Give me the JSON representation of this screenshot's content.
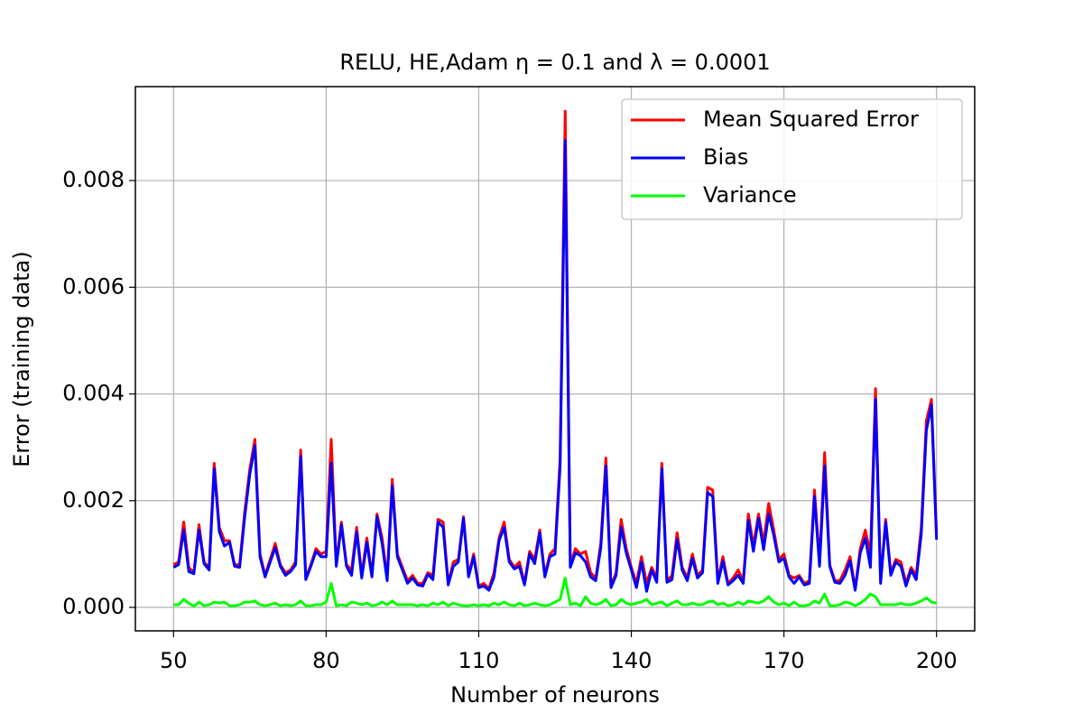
{
  "chart_data": {
    "type": "line",
    "title": "RELU, HE,Adam η = 0.1 and λ = 0.0001",
    "xlabel": "Number of neurons",
    "ylabel": "Error (training data)",
    "x": [
      50,
      51,
      52,
      53,
      54,
      55,
      56,
      57,
      58,
      59,
      60,
      61,
      62,
      63,
      64,
      65,
      66,
      67,
      68,
      69,
      70,
      71,
      72,
      73,
      74,
      75,
      76,
      77,
      78,
      79,
      80,
      81,
      82,
      83,
      84,
      85,
      86,
      87,
      88,
      89,
      90,
      91,
      92,
      93,
      94,
      95,
      96,
      97,
      98,
      99,
      100,
      101,
      102,
      103,
      104,
      105,
      106,
      107,
      108,
      109,
      110,
      111,
      112,
      113,
      114,
      115,
      116,
      117,
      118,
      119,
      120,
      121,
      122,
      123,
      124,
      125,
      126,
      127,
      128,
      129,
      130,
      131,
      132,
      133,
      134,
      135,
      136,
      137,
      138,
      139,
      140,
      141,
      142,
      143,
      144,
      145,
      146,
      147,
      148,
      149,
      150,
      151,
      152,
      153,
      154,
      155,
      156,
      157,
      158,
      159,
      160,
      161,
      162,
      163,
      164,
      165,
      166,
      167,
      168,
      169,
      170,
      171,
      172,
      173,
      174,
      175,
      176,
      177,
      178,
      179,
      180,
      181,
      182,
      183,
      184,
      185,
      186,
      187,
      188,
      189,
      190,
      191,
      192,
      193,
      194,
      195,
      196,
      197,
      198,
      199,
      200
    ],
    "series": [
      {
        "name": "Mean Squared Error",
        "color": "#ff0000",
        "values": [
          0.0008,
          0.00085,
          0.0016,
          0.00075,
          0.00065,
          0.00155,
          0.00085,
          0.00075,
          0.0027,
          0.0015,
          0.00125,
          0.00125,
          0.0008,
          0.0008,
          0.0018,
          0.0026,
          0.00315,
          0.001,
          0.0006,
          0.0009,
          0.0012,
          0.0008,
          0.00065,
          0.0007,
          0.00085,
          0.00295,
          0.00055,
          0.0008,
          0.0011,
          0.001,
          0.00105,
          0.00315,
          0.0008,
          0.0016,
          0.0008,
          0.0007,
          0.0015,
          0.0006,
          0.0013,
          0.0006,
          0.00175,
          0.0013,
          0.00055,
          0.0024,
          0.001,
          0.00075,
          0.0005,
          0.0006,
          0.00045,
          0.00045,
          0.00065,
          0.0006,
          0.00165,
          0.0016,
          0.00045,
          0.00085,
          0.0009,
          0.0017,
          0.0006,
          0.001,
          0.0004,
          0.00045,
          0.00035,
          0.00065,
          0.0013,
          0.0016,
          0.0009,
          0.00075,
          0.00085,
          0.00045,
          0.00105,
          0.0009,
          0.00145,
          0.0006,
          0.001,
          0.0011,
          0.0028,
          0.0093,
          0.0008,
          0.0011,
          0.001,
          0.00105,
          0.00065,
          0.00055,
          0.0012,
          0.0028,
          0.0004,
          0.00065,
          0.00165,
          0.0011,
          0.00075,
          0.00045,
          0.00095,
          0.00045,
          0.00075,
          0.00055,
          0.0027,
          0.0005,
          0.0006,
          0.0014,
          0.00075,
          0.00055,
          0.001,
          0.0006,
          0.0007,
          0.00225,
          0.0022,
          0.0005,
          0.00095,
          0.00045,
          0.00055,
          0.0007,
          0.0005,
          0.00175,
          0.00115,
          0.00175,
          0.0012,
          0.00195,
          0.00145,
          0.0009,
          0.001,
          0.0006,
          0.00055,
          0.0006,
          0.00045,
          0.0005,
          0.0022,
          0.00085,
          0.0029,
          0.0008,
          0.0005,
          0.0005,
          0.0007,
          0.00095,
          0.00035,
          0.0011,
          0.00145,
          0.001,
          0.0041,
          0.0005,
          0.00165,
          0.00065,
          0.0009,
          0.00085,
          0.00045,
          0.00075,
          0.0006,
          0.0015,
          0.0035,
          0.0039,
          0.00135
        ]
      },
      {
        "name": "Bias",
        "color": "#0000ff",
        "values": [
          0.00075,
          0.0008,
          0.00145,
          0.00067,
          0.00063,
          0.00145,
          0.00082,
          0.0007,
          0.0026,
          0.00142,
          0.00115,
          0.00122,
          0.00077,
          0.00075,
          0.0017,
          0.0025,
          0.00303,
          0.00095,
          0.00057,
          0.00085,
          0.00112,
          0.00077,
          0.0006,
          0.00067,
          0.0008,
          0.00283,
          0.00052,
          0.00077,
          0.00105,
          0.00095,
          0.00095,
          0.0027,
          0.00077,
          0.00155,
          0.00077,
          0.0006,
          0.00142,
          0.00055,
          0.00122,
          0.00057,
          0.0017,
          0.0012,
          0.0005,
          0.00228,
          0.00095,
          0.0007,
          0.00045,
          0.00055,
          0.00042,
          0.0004,
          0.00062,
          0.00052,
          0.0016,
          0.0015,
          0.00042,
          0.00077,
          0.00085,
          0.00167,
          0.00057,
          0.00095,
          0.00037,
          0.0004,
          0.00032,
          0.00057,
          0.00125,
          0.0015,
          0.00085,
          0.00072,
          0.00077,
          0.00042,
          0.001,
          0.00082,
          0.0014,
          0.00057,
          0.00095,
          0.001,
          0.00265,
          0.00875,
          0.00075,
          0.00102,
          0.00097,
          0.00085,
          0.00057,
          0.0005,
          0.00112,
          0.00265,
          0.00037,
          0.0006,
          0.0015,
          0.00102,
          0.0007,
          0.00037,
          0.00085,
          0.0003,
          0.0007,
          0.00047,
          0.0026,
          0.00047,
          0.00052,
          0.00128,
          0.0007,
          0.0005,
          0.00092,
          0.00055,
          0.00065,
          0.00215,
          0.00208,
          0.00045,
          0.00087,
          0.00042,
          0.0005,
          0.0006,
          0.00045,
          0.00163,
          0.00105,
          0.00167,
          0.00108,
          0.00175,
          0.00135,
          0.00085,
          0.00092,
          0.00057,
          0.00045,
          0.00057,
          0.00042,
          0.00045,
          0.00208,
          0.00077,
          0.00265,
          0.00077,
          0.00047,
          0.00045,
          0.0006,
          0.00087,
          0.00032,
          0.00102,
          0.0013,
          0.00075,
          0.0039,
          0.00045,
          0.0016,
          0.0006,
          0.00085,
          0.00077,
          0.0004,
          0.0007,
          0.00052,
          0.00138,
          0.00332,
          0.0038,
          0.00127
        ]
      },
      {
        "name": "Variance",
        "color": "#00ff00",
        "values": [
          5e-05,
          5e-05,
          0.00015,
          8e-05,
          2e-05,
          0.0001,
          3e-05,
          5e-05,
          0.0001,
          8e-05,
          0.0001,
          3e-05,
          3e-05,
          5e-05,
          0.0001,
          0.0001,
          0.00012,
          5e-05,
          3e-05,
          5e-05,
          8e-05,
          3e-05,
          5e-05,
          3e-05,
          5e-05,
          0.00012,
          3e-05,
          3e-05,
          5e-05,
          5e-05,
          0.0001,
          0.00045,
          3e-05,
          5e-05,
          3e-05,
          0.0001,
          8e-05,
          5e-05,
          8e-05,
          3e-05,
          5e-05,
          0.0001,
          5e-05,
          0.00012,
          5e-05,
          5e-05,
          5e-05,
          5e-05,
          3e-05,
          5e-05,
          3e-05,
          8e-05,
          5e-05,
          0.0001,
          3e-05,
          8e-05,
          5e-05,
          3e-05,
          3e-05,
          5e-05,
          3e-05,
          5e-05,
          3e-05,
          8e-05,
          5e-05,
          0.0001,
          5e-05,
          3e-05,
          8e-05,
          3e-05,
          5e-05,
          8e-05,
          5e-05,
          3e-05,
          5e-05,
          0.0001,
          0.00015,
          0.00055,
          5e-05,
          8e-05,
          3e-05,
          0.0002,
          8e-05,
          5e-05,
          8e-05,
          0.00015,
          3e-05,
          5e-05,
          0.00015,
          8e-05,
          5e-05,
          8e-05,
          0.0001,
          0.00015,
          5e-05,
          8e-05,
          0.0001,
          3e-05,
          8e-05,
          0.00012,
          5e-05,
          5e-05,
          8e-05,
          5e-05,
          5e-05,
          0.0001,
          0.00012,
          5e-05,
          8e-05,
          3e-05,
          5e-05,
          0.0001,
          5e-05,
          0.00012,
          0.0001,
          8e-05,
          0.00012,
          0.0002,
          0.0001,
          5e-05,
          8e-05,
          3e-05,
          0.0001,
          3e-05,
          3e-05,
          5e-05,
          0.00012,
          8e-05,
          0.00025,
          3e-05,
          3e-05,
          5e-05,
          0.0001,
          8e-05,
          3e-05,
          8e-05,
          0.00015,
          0.00025,
          0.0002,
          5e-05,
          5e-05,
          5e-05,
          5e-05,
          8e-05,
          5e-05,
          5e-05,
          8e-05,
          0.00012,
          0.00018,
          0.0001,
          8e-05
        ]
      }
    ],
    "xlim": [
      42.5,
      207.5
    ],
    "xticks": [
      50,
      80,
      110,
      140,
      170,
      200
    ],
    "ylim": [
      -0.00044,
      0.00976
    ],
    "yticks": [
      {
        "value": 0,
        "label": "0.000"
      },
      0.002,
      0.004,
      0.006,
      0.008
    ],
    "grid": true,
    "legend": "upper right"
  }
}
